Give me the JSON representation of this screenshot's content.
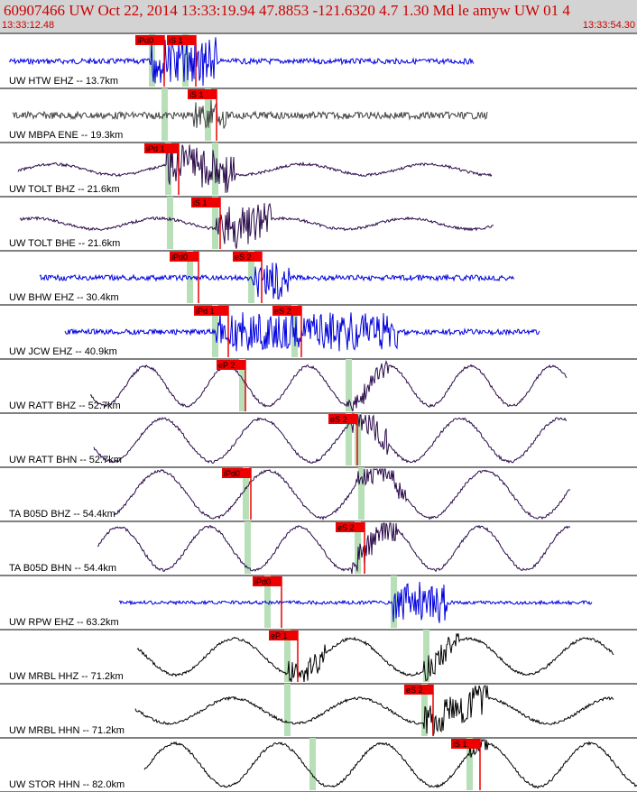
{
  "header": {
    "title": "60907466 UW Oct 22, 2014 13:33:19.94    47.8853 -121.6320  4.7 1.30 Md le amyw UW 01    4",
    "start_time": "13:33:12.48",
    "end_time": "13:33:54.30"
  },
  "colors": {
    "pick_box": "#ee0000",
    "pick_window": "#b8e0b8",
    "header_bg": "#d3d3d3"
  },
  "traces": [
    {
      "label": "UW HTW EHZ -- 13.7km",
      "color": "#0000dd",
      "picks": [
        "iPd0",
        "iS 1"
      ]
    },
    {
      "label": "UW MBPA ENE -- 19.3km",
      "color": "#444444",
      "picks": [
        "iS 1"
      ]
    },
    {
      "label": "UW TOLT BHZ -- 21.6km",
      "color": "#2a0a4a",
      "picks": [
        "iPd 1"
      ]
    },
    {
      "label": "UW TOLT BHE -- 21.6km",
      "color": "#2a0a4a",
      "picks": [
        "iS 1"
      ]
    },
    {
      "label": "UW BHW EHZ -- 30.4km",
      "color": "#0000dd",
      "picks": [
        "iPd0",
        "eS 2"
      ]
    },
    {
      "label": "UW JCW EHZ -- 40.9km",
      "color": "#0000dd",
      "picks": [
        "iPd 1",
        "eS 2"
      ]
    },
    {
      "label": "UW RATT BHZ -- 52.7km",
      "color": "#2a0a4a",
      "picks": [
        "eP 2"
      ]
    },
    {
      "label": "UW RATT BHN -- 52.7km",
      "color": "#2a0a4a",
      "picks": [
        "eS 2"
      ]
    },
    {
      "label": "TA B05D BHZ -- 54.4km",
      "color": "#2a0a4a",
      "picks": [
        "iPd0"
      ]
    },
    {
      "label": "TA B05D BHN -- 54.4km",
      "color": "#2a0a4a",
      "picks": [
        "eS 2"
      ]
    },
    {
      "label": "UW RPW EHZ -- 63.2km",
      "color": "#0000dd",
      "picks": [
        "iPd0"
      ]
    },
    {
      "label": "UW MRBL HHZ -- 71.2km",
      "color": "#000000",
      "picks": [
        "eP 1"
      ]
    },
    {
      "label": "UW MRBL HHN -- 71.2km",
      "color": "#000000",
      "picks": [
        "eS 2"
      ]
    },
    {
      "label": "UW STOR HHN -- 82.0km",
      "color": "#000000",
      "picks": [
        "iS 1"
      ]
    }
  ]
}
